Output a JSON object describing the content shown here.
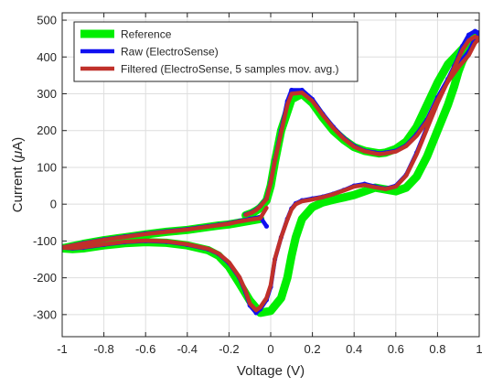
{
  "chart_data": {
    "type": "line",
    "title": "",
    "xlabel": "Voltage (V)",
    "ylabel_parts": {
      "before": "Current (",
      "mu": "μ",
      "after": "A)"
    },
    "xlim": [
      -1,
      1
    ],
    "ylim": [
      -360,
      520
    ],
    "x_ticks": [
      -1,
      -0.8,
      -0.6,
      -0.4,
      -0.2,
      0,
      0.2,
      0.4,
      0.6,
      0.8,
      1
    ],
    "x_tick_labels": [
      "-1",
      "-0.8",
      "-0.6",
      "-0.4",
      "-0.2",
      "0",
      "0.2",
      "0.4",
      "0.6",
      "0.8",
      "1"
    ],
    "y_ticks": [
      -300,
      -200,
      -100,
      0,
      100,
      200,
      300,
      400,
      500
    ],
    "y_tick_labels": [
      "-300",
      "-200",
      "-100",
      "0",
      "100",
      "200",
      "300",
      "400",
      "500"
    ],
    "grid": true,
    "legend_position": "top-left",
    "series": [
      {
        "name": "Reference",
        "color": "#00ee00",
        "style": "thick",
        "x": [
          -0.05,
          -0.1,
          -0.15,
          -0.2,
          -0.25,
          -0.3,
          -0.35,
          -0.4,
          -0.5,
          -0.6,
          -0.7,
          -0.8,
          -0.9,
          -1.0,
          -0.95,
          -0.9,
          -0.8,
          -0.7,
          -0.6,
          -0.5,
          -0.4,
          -0.3,
          -0.25,
          -0.2,
          -0.15,
          -0.1,
          -0.05,
          0.0,
          0.05,
          0.08,
          0.1,
          0.12,
          0.15,
          0.2,
          0.25,
          0.3,
          0.35,
          0.4,
          0.45,
          0.5,
          0.55,
          0.6,
          0.65,
          0.7,
          0.75,
          0.8,
          0.85,
          0.88,
          0.9,
          0.92,
          0.95,
          0.98,
          1.0,
          0.98,
          0.95,
          0.9,
          0.85,
          0.8,
          0.75,
          0.7,
          0.65,
          0.6,
          0.55,
          0.52,
          0.5,
          0.45,
          0.4,
          0.35,
          0.3,
          0.25,
          0.2,
          0.15,
          0.1,
          0.05,
          0.02,
          0.0,
          -0.02,
          -0.05,
          -0.07,
          -0.09,
          -0.12
        ],
        "y": [
          -40,
          -45,
          -50,
          -55,
          -58,
          -62,
          -66,
          -70,
          -75,
          -82,
          -90,
          -98,
          -108,
          -120,
          -122,
          -120,
          -112,
          -106,
          -103,
          -105,
          -112,
          -125,
          -140,
          -170,
          -215,
          -262,
          -295,
          -290,
          -255,
          -200,
          -140,
          -90,
          -40,
          -8,
          5,
          12,
          18,
          25,
          35,
          45,
          40,
          35,
          45,
          75,
          130,
          200,
          270,
          320,
          360,
          390,
          420,
          450,
          460,
          455,
          440,
          410,
          380,
          330,
          270,
          210,
          170,
          150,
          140,
          138,
          140,
          145,
          155,
          175,
          200,
          235,
          275,
          300,
          285,
          200,
          115,
          50,
          10,
          -10,
          -18,
          -24,
          -30
        ]
      },
      {
        "name": "Raw (ElectroSense)",
        "color": "#1010f0",
        "style": "medium",
        "x": [
          -0.02,
          -0.05,
          -0.1,
          -0.15,
          -0.2,
          -0.25,
          -0.3,
          -0.35,
          -0.4,
          -0.5,
          -0.6,
          -0.7,
          -0.8,
          -0.9,
          -1.0,
          -0.95,
          -0.9,
          -0.8,
          -0.7,
          -0.6,
          -0.5,
          -0.4,
          -0.3,
          -0.25,
          -0.2,
          -0.15,
          -0.12,
          -0.1,
          -0.07,
          -0.05,
          -0.02,
          0.0,
          0.02,
          0.05,
          0.08,
          0.1,
          0.12,
          0.15,
          0.2,
          0.25,
          0.3,
          0.35,
          0.4,
          0.45,
          0.5,
          0.55,
          0.6,
          0.65,
          0.7,
          0.75,
          0.8,
          0.85,
          0.88,
          0.9,
          0.92,
          0.95,
          0.98,
          1.0,
          0.98,
          0.95,
          0.9,
          0.85,
          0.8,
          0.75,
          0.7,
          0.65,
          0.6,
          0.55,
          0.52,
          0.5,
          0.45,
          0.4,
          0.35,
          0.3,
          0.25,
          0.2,
          0.15,
          0.1,
          0.08,
          0.05,
          0.02,
          0.0,
          -0.02,
          -0.05,
          -0.07,
          -0.09,
          -0.12
        ],
        "y": [
          -60,
          -35,
          -40,
          -46,
          -52,
          -56,
          -60,
          -64,
          -68,
          -74,
          -80,
          -88,
          -96,
          -106,
          -118,
          -120,
          -118,
          -110,
          -103,
          -100,
          -102,
          -110,
          -122,
          -135,
          -160,
          -200,
          -240,
          -275,
          -295,
          -285,
          -260,
          -225,
          -150,
          -90,
          -40,
          -12,
          2,
          10,
          15,
          20,
          28,
          38,
          50,
          55,
          48,
          42,
          50,
          80,
          140,
          210,
          280,
          340,
          375,
          400,
          430,
          460,
          470,
          465,
          450,
          415,
          380,
          340,
          290,
          230,
          190,
          160,
          145,
          140,
          138,
          140,
          145,
          158,
          180,
          210,
          245,
          285,
          310,
          310,
          280,
          200,
          120,
          60,
          15,
          -5,
          -15,
          -22,
          -28
        ]
      },
      {
        "name": "Filtered (ElectroSense, 5 samples mov. avg.)",
        "color": "#c0302a",
        "style": "medium",
        "x": [
          -0.02,
          -0.05,
          -0.1,
          -0.15,
          -0.2,
          -0.25,
          -0.3,
          -0.35,
          -0.4,
          -0.5,
          -0.6,
          -0.7,
          -0.8,
          -0.9,
          -1.0,
          -0.95,
          -0.9,
          -0.8,
          -0.7,
          -0.6,
          -0.5,
          -0.4,
          -0.3,
          -0.25,
          -0.2,
          -0.15,
          -0.12,
          -0.1,
          -0.07,
          -0.05,
          -0.02,
          0.0,
          0.02,
          0.05,
          0.08,
          0.1,
          0.12,
          0.15,
          0.2,
          0.25,
          0.3,
          0.35,
          0.4,
          0.45,
          0.5,
          0.55,
          0.6,
          0.65,
          0.7,
          0.75,
          0.8,
          0.85,
          0.88,
          0.9,
          0.92,
          0.95,
          0.98,
          1.0,
          0.98,
          0.95,
          0.9,
          0.85,
          0.8,
          0.75,
          0.7,
          0.65,
          0.6,
          0.55,
          0.52,
          0.5,
          0.45,
          0.4,
          0.35,
          0.3,
          0.25,
          0.2,
          0.15,
          0.1,
          0.08,
          0.05,
          0.02,
          0.0,
          -0.02,
          -0.05,
          -0.07,
          -0.09,
          -0.12
        ],
        "y": [
          -10,
          -38,
          -42,
          -47,
          -53,
          -57,
          -61,
          -65,
          -69,
          -75,
          -81,
          -89,
          -97,
          -107,
          -118,
          -119,
          -117,
          -109,
          -102,
          -99,
          -101,
          -109,
          -121,
          -134,
          -158,
          -198,
          -236,
          -270,
          -288,
          -280,
          -255,
          -220,
          -148,
          -90,
          -42,
          -14,
          0,
          8,
          13,
          19,
          27,
          37,
          48,
          52,
          46,
          41,
          48,
          78,
          136,
          205,
          275,
          335,
          370,
          395,
          420,
          445,
          455,
          450,
          438,
          405,
          372,
          333,
          283,
          225,
          186,
          158,
          143,
          138,
          136,
          138,
          144,
          156,
          178,
          207,
          242,
          280,
          303,
          300,
          270,
          195,
          118,
          58,
          14,
          -6,
          -16,
          -23,
          -29
        ]
      }
    ]
  }
}
